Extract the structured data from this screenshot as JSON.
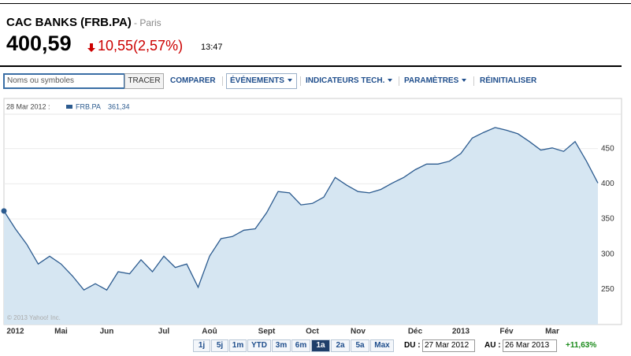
{
  "header": {
    "name": "CAC BANKS (FRB.PA)",
    "exchange": "- Paris",
    "price": "400,59",
    "change": "10,55(2,57%)",
    "time": "13:47"
  },
  "toolbar": {
    "search_placeholder": "Noms ou symboles",
    "buttons": [
      "TRACER",
      "COMPARER",
      "ÉVÉNEMENTS",
      "INDICATEURS TECH.",
      "PARAMÈTRES",
      "RÉINITIALISER"
    ]
  },
  "chart_data": {
    "type": "line",
    "legend": {
      "date": "28 Mar 2012 :",
      "value": "361,34"
    },
    "watermark": "© 2013 Yahoo! Inc.",
    "categories": [
      null,
      "2012",
      null,
      null,
      null,
      "Mai",
      null,
      null,
      null,
      "Jun",
      null,
      null,
      null,
      null,
      "Jul",
      null,
      null,
      null,
      "Aoû",
      null,
      null,
      null,
      null,
      "Sept",
      null,
      null,
      null,
      "Oct",
      null,
      null,
      null,
      "Nov",
      null,
      null,
      null,
      null,
      "Déc",
      null,
      null,
      null,
      "2013",
      null,
      null,
      null,
      "Fév",
      null,
      null,
      null,
      "Mar",
      null,
      null,
      null,
      null
    ],
    "series": [
      {
        "name": "FRB.PA",
        "color": "#2c5b8f",
        "fill": "#d6e6f2",
        "values": [
          361.34,
          336,
          314,
          286,
          297,
          286,
          269,
          249,
          258,
          249,
          275,
          272,
          292,
          275,
          297,
          281,
          286,
          253,
          297,
          322,
          325,
          334,
          336,
          359,
          389,
          387,
          370,
          372,
          381,
          409,
          398,
          389,
          387,
          392,
          401,
          409,
          420,
          428,
          428,
          432,
          443,
          465,
          473,
          480,
          476,
          471,
          460,
          448,
          451,
          446,
          460,
          432,
          401
        ]
      }
    ],
    "ylim": [
      200,
      500
    ],
    "yticks": [
      250,
      300,
      350,
      400,
      450
    ],
    "grid": true
  },
  "footer": {
    "ranges": [
      "1j",
      "5j",
      "1m",
      "YTD",
      "3m",
      "6m",
      "1a",
      "2a",
      "5a",
      "Max"
    ],
    "selected": 6,
    "from_label": "DU :",
    "from": "27 Mar 2012",
    "to_label": "AU :",
    "to": "26 Mar 2013",
    "change": "+11,63%"
  }
}
